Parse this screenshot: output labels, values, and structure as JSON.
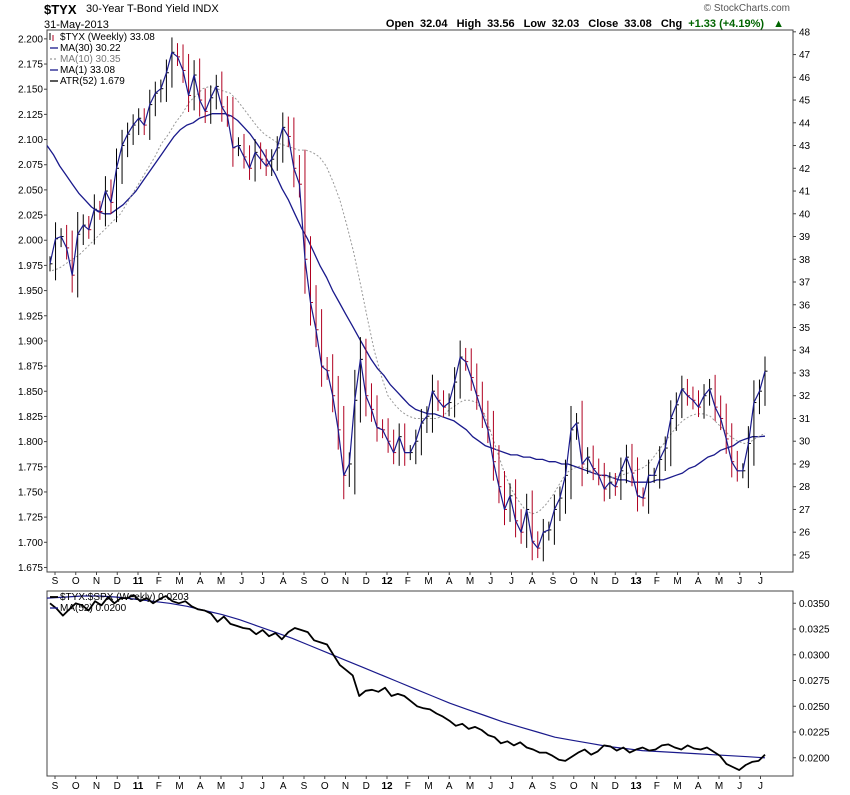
{
  "header": {
    "symbol": "$TYX",
    "description": "30-Year T-Bond Yield",
    "exchange": "INDX",
    "date": "31-May-2013",
    "brand": "© StockCharts.com",
    "quote": {
      "open_label": "Open",
      "open": "32.04",
      "high_label": "High",
      "high": "33.56",
      "low_label": "Low",
      "low": "32.03",
      "close_label": "Close",
      "close": "33.08",
      "chg_label": "Chg",
      "chg": "+1.33 (+4.19%)"
    }
  },
  "chart_data": [
    {
      "type": "line",
      "panel": "main",
      "title": "$TYX (Weekly) 33.08",
      "x_labels": [
        "S",
        "O",
        "N",
        "D",
        "11",
        "F",
        "M",
        "A",
        "M",
        "J",
        "J",
        "A",
        "S",
        "O",
        "N",
        "D",
        "12",
        "F",
        "M",
        "A",
        "M",
        "J",
        "J",
        "A",
        "S",
        "O",
        "N",
        "D",
        "13",
        "F",
        "M",
        "A",
        "M",
        "J",
        "J"
      ],
      "left_axis_ticks": [
        "2.200",
        "2.175",
        "2.150",
        "2.125",
        "2.100",
        "2.075",
        "2.050",
        "2.025",
        "2.000",
        "1.975",
        "1.950",
        "1.925",
        "1.900",
        "1.875",
        "1.850",
        "1.825",
        "1.800",
        "1.775",
        "1.750",
        "1.725",
        "1.700",
        "1.675"
      ],
      "left_axis_range": [
        1.6705,
        2.2088
      ],
      "right_axis_ticks": [
        "48",
        "47",
        "46",
        "45",
        "44",
        "43",
        "42",
        "41",
        "40",
        "39",
        "38",
        "37",
        "36",
        "35",
        "34",
        "33",
        "32",
        "31",
        "30",
        "29",
        "28",
        "27",
        "26",
        "25"
      ],
      "right_axis_range": [
        24.25,
        48.08
      ],
      "series": [
        {
          "name": "$TYX",
          "legend": "$TYX (Weekly) 33.08",
          "color": "#1a1a8c",
          "values": [
            37.8,
            38.9,
            39.0,
            38.5,
            37.3,
            39.1,
            39.5,
            39.3,
            40.2,
            40.1,
            41.0,
            40.5,
            42.0,
            43.0,
            43.5,
            43.9,
            44.2,
            43.9,
            44.8,
            45.3,
            45.5,
            46.2,
            47.1,
            46.9,
            46.3,
            45.2,
            46.1,
            45.0,
            44.5,
            45.1,
            45.6,
            44.7,
            44.3,
            42.9,
            43.0,
            42.5,
            42.0,
            42.7,
            42.4,
            42.1,
            42.4,
            42.9,
            43.8,
            43.4,
            42.0,
            41.3,
            38.0,
            36.1,
            34.9,
            33.3,
            33.1,
            32.0,
            30.5,
            28.5,
            29.0,
            31.8,
            33.6,
            32.0,
            31.4,
            30.6,
            30.5,
            30.0,
            29.5,
            30.2,
            29.5,
            29.5,
            30.0,
            30.8,
            31.1,
            32.2,
            31.8,
            31.5,
            31.7,
            32.6,
            33.7,
            33.5,
            32.8,
            32.0,
            31.2,
            30.5,
            29.1,
            28.0,
            27.0,
            27.6,
            26.5,
            26.0,
            27.0,
            25.6,
            25.3,
            26.0,
            26.1,
            27.0,
            27.5,
            28.5,
            30.5,
            30.8,
            29.0,
            29.3,
            28.8,
            28.5,
            27.9,
            28.2,
            28.0,
            28.7,
            29.3,
            28.6,
            27.6,
            27.5,
            28.5,
            28.5,
            29.2,
            29.7,
            31.0,
            31.6,
            32.3,
            32.0,
            31.8,
            31.5,
            32.0,
            32.3,
            31.5,
            31.0,
            30.1,
            29.1,
            28.7,
            28.7,
            29.9,
            31.7,
            32.2,
            33.08
          ]
        },
        {
          "name": "MA(30)",
          "legend": "MA(30) 30.22",
          "color": "#1a1a8c",
          "values": [
            43.0,
            42.6,
            42.1,
            41.7,
            41.3,
            40.9,
            40.6,
            40.3,
            40.1,
            40.0,
            40.0,
            40.2,
            40.4,
            40.7,
            41.0,
            41.4,
            41.8,
            42.2,
            42.6,
            43.0,
            43.4,
            43.7,
            43.9,
            44.0,
            44.2,
            44.3,
            44.4,
            44.4,
            44.4,
            44.3,
            44.1,
            43.8,
            43.5,
            43.1,
            42.7,
            42.2,
            41.7,
            41.1,
            40.6,
            40.0,
            39.4,
            38.9,
            38.3,
            37.7,
            37.2,
            36.6,
            36.1,
            35.6,
            35.1,
            34.6,
            34.1,
            33.6,
            33.2,
            32.9,
            32.5,
            32.2,
            31.9,
            31.6,
            31.4,
            31.3,
            31.2,
            31.2,
            31.1,
            31.0,
            30.9,
            30.7,
            30.5,
            30.2,
            30.0,
            29.8,
            29.7,
            29.6,
            29.5,
            29.4,
            29.4,
            29.3,
            29.3,
            29.2,
            29.2,
            29.1,
            29.1,
            29.0,
            29.0,
            28.9,
            28.8,
            28.7,
            28.6,
            28.5,
            28.5,
            28.4,
            28.3,
            28.3,
            28.2,
            28.2,
            28.2,
            28.2,
            28.3,
            28.3,
            28.4,
            28.5,
            28.6,
            28.8,
            28.9,
            29.1,
            29.3,
            29.4,
            29.6,
            29.7,
            29.8,
            30.0,
            30.1,
            30.2,
            30.2,
            30.22
          ]
        },
        {
          "name": "MA(10)",
          "legend": "MA(10) 30.35",
          "color": "#9a9a9a",
          "values": [
            37.5,
            37.6,
            37.8,
            38.0,
            38.2,
            38.5,
            38.8,
            39.1,
            39.4,
            39.7,
            40.0,
            40.5,
            41.0,
            41.5,
            42.0,
            42.5,
            43.1,
            43.5,
            44.0,
            44.4,
            44.9,
            45.2,
            45.5,
            45.6,
            45.5,
            45.4,
            45.3,
            45.0,
            44.6,
            44.2,
            43.8,
            43.5,
            43.3,
            43.1,
            43.0,
            42.9,
            42.8,
            42.8,
            42.7,
            42.5,
            42.1,
            41.4,
            40.6,
            39.5,
            38.3,
            36.9,
            35.4,
            34.0,
            32.9,
            32.0,
            31.6,
            31.3,
            31.1,
            31.0,
            31.0,
            31.0,
            31.0,
            31.1,
            31.4,
            31.6,
            31.8,
            31.8,
            31.7,
            31.2,
            30.4,
            29.5,
            28.6,
            27.9,
            27.4,
            27.0,
            26.8,
            26.9,
            27.2,
            27.6,
            28.1,
            28.6,
            28.8,
            28.9,
            28.8,
            28.6,
            28.5,
            28.4,
            28.4,
            28.5,
            28.6,
            28.7,
            28.8,
            29.0,
            29.4,
            29.8,
            30.2,
            30.6,
            30.9,
            31.1,
            31.2,
            31.2,
            31.1,
            30.8,
            30.5,
            30.2,
            30.0,
            29.9,
            30.0,
            30.2,
            30.35
          ]
        },
        {
          "name": "MA(1)",
          "legend": "MA(1) 33.08",
          "color": "#1a1a8c",
          "values": []
        },
        {
          "name": "ATR(52)",
          "legend": "ATR(52) 1.679",
          "color": "#000000",
          "values": []
        }
      ]
    },
    {
      "type": "line",
      "panel": "ratio",
      "title": "$TYX:$SPX (Weekly) 0.0203",
      "x_labels": [
        "S",
        "O",
        "N",
        "D",
        "11",
        "F",
        "M",
        "A",
        "M",
        "J",
        "J",
        "A",
        "S",
        "O",
        "N",
        "D",
        "12",
        "F",
        "M",
        "A",
        "M",
        "J",
        "J",
        "A",
        "S",
        "O",
        "N",
        "D",
        "13",
        "F",
        "M",
        "A",
        "M",
        "J",
        "J"
      ],
      "right_axis_ticks": [
        "0.0350",
        "0.0325",
        "0.0300",
        "0.0275",
        "0.0250",
        "0.0225",
        "0.0200"
      ],
      "right_axis_range": [
        0.01823,
        0.03619
      ],
      "series": [
        {
          "name": "$TYX:$SPX",
          "legend": "$TYX:$SPX (Weekly) 0.0203",
          "color": "#000000",
          "values": [
            0.035,
            0.0345,
            0.0338,
            0.0344,
            0.035,
            0.0348,
            0.0343,
            0.0352,
            0.0348,
            0.0356,
            0.035,
            0.0355,
            0.0355,
            0.0358,
            0.0352,
            0.0355,
            0.035,
            0.0354,
            0.0357,
            0.0352,
            0.035,
            0.0352,
            0.0347,
            0.0344,
            0.0343,
            0.034,
            0.0332,
            0.0337,
            0.033,
            0.0328,
            0.0326,
            0.0325,
            0.032,
            0.0324,
            0.0318,
            0.0321,
            0.0315,
            0.0322,
            0.0326,
            0.0324,
            0.0322,
            0.0314,
            0.0312,
            0.031,
            0.03,
            0.029,
            0.0285,
            0.028,
            0.026,
            0.0265,
            0.0266,
            0.0264,
            0.0268,
            0.026,
            0.0262,
            0.026,
            0.0255,
            0.025,
            0.0248,
            0.0247,
            0.0243,
            0.024,
            0.0236,
            0.0231,
            0.0233,
            0.0228,
            0.023,
            0.0227,
            0.0222,
            0.022,
            0.0214,
            0.0216,
            0.0212,
            0.0215,
            0.021,
            0.0208,
            0.0205,
            0.0205,
            0.0202,
            0.0198,
            0.0197,
            0.0201,
            0.0205,
            0.0208,
            0.0203,
            0.0206,
            0.0212,
            0.0211,
            0.0207,
            0.021,
            0.0205,
            0.0208,
            0.021,
            0.0207,
            0.0208,
            0.0212,
            0.0213,
            0.021,
            0.0208,
            0.0212,
            0.0209,
            0.0208,
            0.021,
            0.0206,
            0.0202,
            0.0194,
            0.0191,
            0.0188,
            0.0193,
            0.0196,
            0.0197,
            0.0203
          ]
        },
        {
          "name": "MA(52)",
          "legend": "MA(52) 0.0200",
          "color": "#1a1a8c",
          "values": [
            0.0355,
            0.0356,
            0.0357,
            0.0357,
            0.0356,
            0.0354,
            0.0352,
            0.035,
            0.0347,
            0.0343,
            0.0339,
            0.0334,
            0.0328,
            0.0322,
            0.0316,
            0.0309,
            0.0302,
            0.0295,
            0.0288,
            0.0281,
            0.0274,
            0.0267,
            0.026,
            0.0253,
            0.0247,
            0.0241,
            0.0235,
            0.023,
            0.0225,
            0.022,
            0.0217,
            0.0214,
            0.0211,
            0.0209,
            0.0207,
            0.0206,
            0.0205,
            0.0204,
            0.0203,
            0.0202,
            0.0201,
            0.02
          ]
        }
      ]
    }
  ]
}
